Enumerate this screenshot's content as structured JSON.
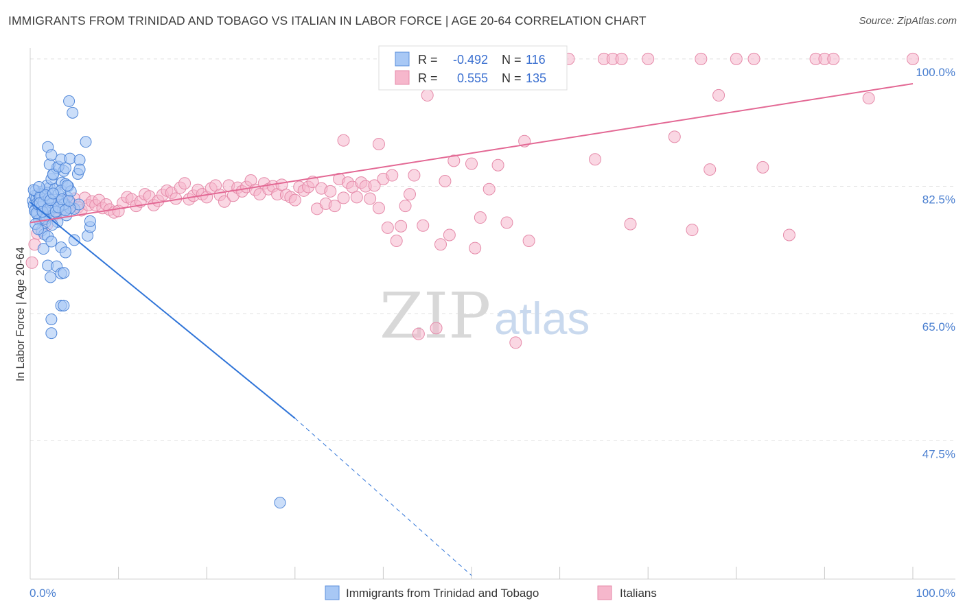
{
  "title": "IMMIGRANTS FROM TRINIDAD AND TOBAGO VS ITALIAN IN LABOR FORCE | AGE 20-64 CORRELATION CHART",
  "source": "Source: ZipAtlas.com",
  "watermark": {
    "zip": "ZIP",
    "atlas": "atlas"
  },
  "legend_box": {
    "rows": [
      {
        "r_label": "R =",
        "r_value": "-0.492",
        "n_label": "N =",
        "n_value": "116",
        "color": "#a8c8f5",
        "stroke": "#5b8fdc"
      },
      {
        "r_label": "R =",
        "r_value": "0.555",
        "n_label": "N =",
        "n_value": "135",
        "color": "#f6b7cc",
        "stroke": "#e58aa9"
      }
    ]
  },
  "bottom_legend": [
    {
      "label": "Immigrants from Trinidad and Tobago",
      "color": "#a8c8f5",
      "stroke": "#5b8fdc"
    },
    {
      "label": "Italians",
      "color": "#f6b7cc",
      "stroke": "#e58aa9"
    }
  ],
  "chart_data": {
    "type": "scatter",
    "title": "IMMIGRANTS FROM TRINIDAD AND TOBAGO VS ITALIAN IN LABOR FORCE | AGE 20-64 CORRELATION CHART",
    "xlabel": "",
    "ylabel": "In Labor Force | Age 20-64",
    "xlim": [
      0,
      100
    ],
    "ylim": [
      28.5,
      101.5
    ],
    "x_tick_labels": [
      "0.0%",
      "100.0%"
    ],
    "y_ticks": [
      47.5,
      65.0,
      82.5,
      100.0
    ],
    "y_tick_labels": [
      "47.5%",
      "65.0%",
      "82.5%",
      "100.0%"
    ],
    "grid": true,
    "legend_position": "bottom",
    "colors": {
      "blue_fill": "#a8c8f5",
      "blue_line": "#2f74d8",
      "pink_fill": "#f6b7cc",
      "pink_line": "#e36894"
    },
    "series": [
      {
        "name": "Immigrants from Trinidad and Tobago",
        "color": "#2f74d8",
        "R": -0.492,
        "N": 116,
        "trend": {
          "x": [
            0,
            30
          ],
          "y": [
            80.3,
            50.6
          ],
          "dashed_extension": {
            "x": [
              30,
              50
            ],
            "y": [
              50.6,
              29.0
            ]
          }
        },
        "points": [
          [
            0.3,
            80.5
          ],
          [
            0.4,
            79.9
          ],
          [
            0.5,
            81.2
          ],
          [
            0.6,
            79.3
          ],
          [
            0.7,
            80.8
          ],
          [
            0.8,
            78.6
          ],
          [
            0.9,
            81.5
          ],
          [
            1.0,
            80.1
          ],
          [
            1.1,
            79.6
          ],
          [
            1.2,
            80.9
          ],
          [
            1.3,
            78.2
          ],
          [
            1.4,
            81.8
          ],
          [
            1.5,
            79.0
          ],
          [
            1.6,
            80.4
          ],
          [
            1.7,
            77.5
          ],
          [
            1.8,
            81.1
          ],
          [
            1.9,
            79.8
          ],
          [
            2.0,
            80.6
          ],
          [
            2.1,
            78.9
          ],
          [
            2.2,
            82.3
          ],
          [
            0.5,
            79.1
          ],
          [
            0.6,
            81.9
          ],
          [
            0.8,
            80.2
          ],
          [
            1.0,
            77.9
          ],
          [
            1.2,
            81.4
          ],
          [
            1.4,
            79.4
          ],
          [
            1.6,
            80.7
          ],
          [
            1.8,
            78.4
          ],
          [
            2.0,
            81.6
          ],
          [
            2.2,
            79.2
          ],
          [
            0.4,
            82.0
          ],
          [
            0.7,
            78.8
          ],
          [
            0.9,
            80.0
          ],
          [
            1.1,
            81.0
          ],
          [
            1.3,
            79.7
          ],
          [
            1.5,
            80.3
          ],
          [
            1.7,
            78.0
          ],
          [
            1.9,
            82.6
          ],
          [
            2.1,
            80.8
          ],
          [
            2.3,
            79.5
          ],
          [
            2.4,
            83.5
          ],
          [
            2.6,
            84.2
          ],
          [
            2.8,
            82.1
          ],
          [
            3.0,
            85.0
          ],
          [
            3.2,
            81.4
          ],
          [
            3.4,
            79.9
          ],
          [
            3.6,
            83.0
          ],
          [
            3.8,
            84.6
          ],
          [
            4.0,
            82.8
          ],
          [
            4.2,
            81.0
          ],
          [
            2.5,
            80.2
          ],
          [
            2.7,
            78.7
          ],
          [
            2.9,
            79.6
          ],
          [
            3.1,
            77.6
          ],
          [
            3.3,
            80.5
          ],
          [
            3.5,
            81.9
          ],
          [
            3.7,
            79.3
          ],
          [
            3.9,
            80.1
          ],
          [
            4.1,
            78.5
          ],
          [
            4.3,
            82.5
          ],
          [
            2.0,
            87.9
          ],
          [
            2.2,
            85.5
          ],
          [
            2.4,
            86.8
          ],
          [
            2.6,
            84.1
          ],
          [
            3.2,
            85.2
          ],
          [
            3.5,
            86.2
          ],
          [
            4.0,
            85.0
          ],
          [
            4.5,
            86.3
          ],
          [
            5.6,
            86.1
          ],
          [
            6.3,
            88.6
          ],
          [
            4.4,
            94.2
          ],
          [
            4.8,
            92.6
          ],
          [
            5.4,
            84.2
          ],
          [
            5.6,
            84.8
          ],
          [
            4.6,
            81.8
          ],
          [
            5.0,
            79.4
          ],
          [
            5.5,
            80.0
          ],
          [
            4.2,
            82.6
          ],
          [
            4.5,
            79.5
          ],
          [
            3.8,
            80.0
          ],
          [
            1.3,
            76.4
          ],
          [
            1.6,
            75.9
          ],
          [
            2.0,
            75.6
          ],
          [
            2.4,
            74.9
          ],
          [
            1.5,
            73.9
          ],
          [
            3.5,
            74.1
          ],
          [
            4.0,
            73.4
          ],
          [
            5.0,
            75.1
          ],
          [
            6.5,
            75.7
          ],
          [
            6.8,
            76.9
          ],
          [
            6.8,
            77.7
          ],
          [
            2.0,
            71.6
          ],
          [
            3.0,
            71.5
          ],
          [
            3.5,
            70.5
          ],
          [
            2.3,
            70.0
          ],
          [
            3.8,
            70.6
          ],
          [
            3.5,
            66.1
          ],
          [
            3.8,
            66.1
          ],
          [
            2.4,
            64.2
          ],
          [
            2.4,
            62.3
          ],
          [
            28.3,
            39.0
          ],
          [
            0.6,
            77.3
          ],
          [
            0.9,
            76.6
          ],
          [
            1.1,
            80.2
          ],
          [
            1.4,
            79.0
          ],
          [
            1.7,
            81.3
          ],
          [
            2.0,
            79.4
          ],
          [
            2.3,
            80.6
          ],
          [
            2.6,
            81.5
          ],
          [
            2.9,
            79.0
          ],
          [
            3.2,
            79.6
          ],
          [
            3.6,
            80.7
          ],
          [
            4.0,
            79.2
          ],
          [
            4.4,
            80.5
          ],
          [
            1.0,
            82.4
          ],
          [
            2.5,
            77.2
          ]
        ]
      },
      {
        "name": "Italians",
        "color": "#e36894",
        "R": 0.555,
        "N": 135,
        "trend": {
          "x": [
            0,
            100
          ],
          "y": [
            77.5,
            96.6
          ]
        },
        "points": [
          [
            0.2,
            72.0
          ],
          [
            0.5,
            74.5
          ],
          [
            0.8,
            76.0
          ],
          [
            1.0,
            79.4
          ],
          [
            1.3,
            78.0
          ],
          [
            1.6,
            80.0
          ],
          [
            1.9,
            77.2
          ],
          [
            2.2,
            79.0
          ],
          [
            2.6,
            78.4
          ],
          [
            3.0,
            80.0
          ],
          [
            3.4,
            78.8
          ],
          [
            3.8,
            80.6
          ],
          [
            4.2,
            79.5
          ],
          [
            4.6,
            80.2
          ],
          [
            5.0,
            80.8
          ],
          [
            5.4,
            79.6
          ],
          [
            5.8,
            79.2
          ],
          [
            6.2,
            80.9
          ],
          [
            6.6,
            79.9
          ],
          [
            7.0,
            80.4
          ],
          [
            7.4,
            79.9
          ],
          [
            7.8,
            80.6
          ],
          [
            8.2,
            79.5
          ],
          [
            8.6,
            80.0
          ],
          [
            9.0,
            79.3
          ],
          [
            9.5,
            78.9
          ],
          [
            10.0,
            79.1
          ],
          [
            10.5,
            80.2
          ],
          [
            11.0,
            81.0
          ],
          [
            11.5,
            80.7
          ],
          [
            12.0,
            79.8
          ],
          [
            12.5,
            80.4
          ],
          [
            13.0,
            81.4
          ],
          [
            13.5,
            81.1
          ],
          [
            14.0,
            79.9
          ],
          [
            14.5,
            80.5
          ],
          [
            15.0,
            81.3
          ],
          [
            15.5,
            81.9
          ],
          [
            16.0,
            81.6
          ],
          [
            16.5,
            80.8
          ],
          [
            17.0,
            82.3
          ],
          [
            17.5,
            82.9
          ],
          [
            18.0,
            80.7
          ],
          [
            18.5,
            81.2
          ],
          [
            19.0,
            82.0
          ],
          [
            19.5,
            81.4
          ],
          [
            20.0,
            81.0
          ],
          [
            20.5,
            82.2
          ],
          [
            21.0,
            82.6
          ],
          [
            21.5,
            81.3
          ],
          [
            22.0,
            80.4
          ],
          [
            22.5,
            82.6
          ],
          [
            23.0,
            81.2
          ],
          [
            23.5,
            82.3
          ],
          [
            24.0,
            81.8
          ],
          [
            24.5,
            82.4
          ],
          [
            25.0,
            83.3
          ],
          [
            25.5,
            82.0
          ],
          [
            26.0,
            81.4
          ],
          [
            26.5,
            82.9
          ],
          [
            27.0,
            82.1
          ],
          [
            27.5,
            82.5
          ],
          [
            28.0,
            81.4
          ],
          [
            28.5,
            82.7
          ],
          [
            29.0,
            81.3
          ],
          [
            29.5,
            81.0
          ],
          [
            30.0,
            80.6
          ],
          [
            30.5,
            82.4
          ],
          [
            31.0,
            81.9
          ],
          [
            31.5,
            82.4
          ],
          [
            32.0,
            83.1
          ],
          [
            32.5,
            79.4
          ],
          [
            33.0,
            82.2
          ],
          [
            33.5,
            80.1
          ],
          [
            34.0,
            81.8
          ],
          [
            34.5,
            79.8
          ],
          [
            35.0,
            83.5
          ],
          [
            35.5,
            80.9
          ],
          [
            36.0,
            83.0
          ],
          [
            36.5,
            82.4
          ],
          [
            37.0,
            81.0
          ],
          [
            37.5,
            83.0
          ],
          [
            38.0,
            82.5
          ],
          [
            38.5,
            80.8
          ],
          [
            39.0,
            82.6
          ],
          [
            39.5,
            79.5
          ],
          [
            40.0,
            83.5
          ],
          [
            40.5,
            76.8
          ],
          [
            41.0,
            84.0
          ],
          [
            41.5,
            75.0
          ],
          [
            42.0,
            77.0
          ],
          [
            42.5,
            79.8
          ],
          [
            43.0,
            81.4
          ],
          [
            43.5,
            84.0
          ],
          [
            44.0,
            62.2
          ],
          [
            44.5,
            77.1
          ],
          [
            45.0,
            95.0
          ],
          [
            46.0,
            63.0
          ],
          [
            46.5,
            74.5
          ],
          [
            47.0,
            83.2
          ],
          [
            47.5,
            75.8
          ],
          [
            48.0,
            86.0
          ],
          [
            50.0,
            85.6
          ],
          [
            50.4,
            74.0
          ],
          [
            51.0,
            78.2
          ],
          [
            52.0,
            82.1
          ],
          [
            53.0,
            85.4
          ],
          [
            54.0,
            77.5
          ],
          [
            55.0,
            61.0
          ],
          [
            56.0,
            88.7
          ],
          [
            56.5,
            75.0
          ],
          [
            57.0,
            100.0
          ],
          [
            58.0,
            100.0
          ],
          [
            61.0,
            100.0
          ],
          [
            64.0,
            86.2
          ],
          [
            65.0,
            100.0
          ],
          [
            66.0,
            100.0
          ],
          [
            67.0,
            100.0
          ],
          [
            68.0,
            77.3
          ],
          [
            70.0,
            100.0
          ],
          [
            73.0,
            89.3
          ],
          [
            75.0,
            76.5
          ],
          [
            76.0,
            100.0
          ],
          [
            77.0,
            84.8
          ],
          [
            78.0,
            95.0
          ],
          [
            80.0,
            100.0
          ],
          [
            82.0,
            100.0
          ],
          [
            83.0,
            85.1
          ],
          [
            86.0,
            75.8
          ],
          [
            89.0,
            100.0
          ],
          [
            90.0,
            100.0
          ],
          [
            91.0,
            100.0
          ],
          [
            95.0,
            94.6
          ],
          [
            100.0,
            100.0
          ],
          [
            53.5,
            100.0
          ],
          [
            48.5,
            100.0
          ],
          [
            51.5,
            100.0
          ],
          [
            39.5,
            88.3
          ],
          [
            35.5,
            88.8
          ],
          [
            47.0,
            100.0
          ]
        ]
      }
    ]
  }
}
